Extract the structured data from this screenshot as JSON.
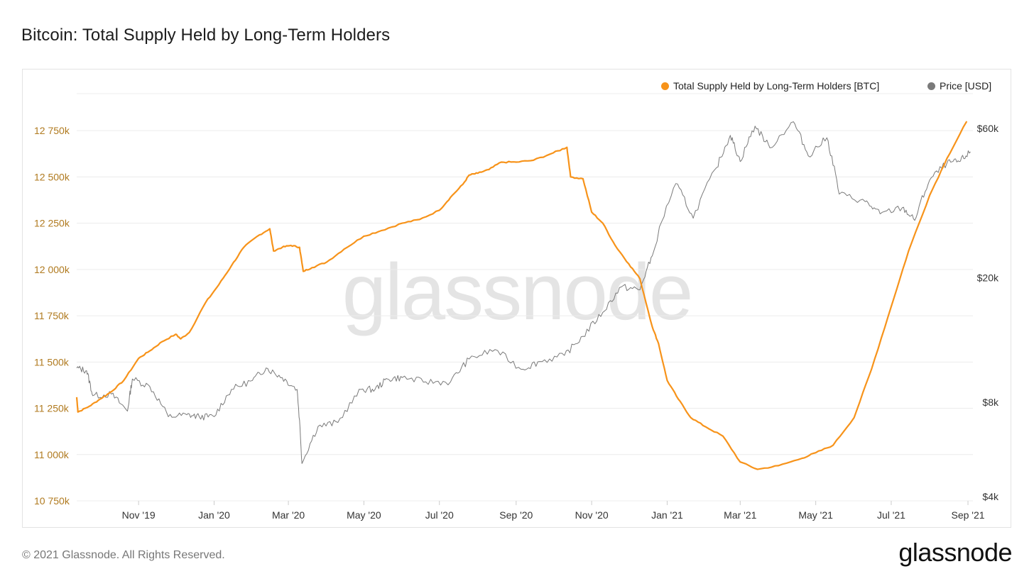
{
  "title": "Bitcoin: Total Supply Held by Long-Term Holders",
  "footer": {
    "copyright": "© 2021 Glassnode. All Rights Reserved.",
    "logo": "glassnode"
  },
  "colors": {
    "lth_line": "#f7931a",
    "price_line": "#7a7a7a",
    "left_axis_text": "#b07a1f",
    "grid": "#ececec"
  },
  "chart_data": {
    "type": "line",
    "title": "Bitcoin: Total Supply Held by Long-Term Holders",
    "watermark": "glassnode",
    "legend_position": "top-right",
    "grid": true,
    "x_range": [
      "2019-09-12",
      "2021-09-05"
    ],
    "x_ticks": [
      {
        "label": "Nov '19",
        "date": "2019-11-01"
      },
      {
        "label": "Jan '20",
        "date": "2020-01-01"
      },
      {
        "label": "Mar '20",
        "date": "2020-03-01"
      },
      {
        "label": "May '20",
        "date": "2020-05-01"
      },
      {
        "label": "Jul '20",
        "date": "2020-07-01"
      },
      {
        "label": "Sep '20",
        "date": "2020-09-01"
      },
      {
        "label": "Nov '20",
        "date": "2020-11-01"
      },
      {
        "label": "Jan '21",
        "date": "2021-01-01"
      },
      {
        "label": "Mar '21",
        "date": "2021-03-01"
      },
      {
        "label": "May '21",
        "date": "2021-05-01"
      },
      {
        "label": "Jul '21",
        "date": "2021-07-01"
      },
      {
        "label": "Sep '21",
        "date": "2021-09-01"
      }
    ],
    "y_left": {
      "unit": "BTC",
      "range": [
        10750000,
        12950000
      ],
      "ticks": [
        {
          "label": "10 750k",
          "value": 10750000
        },
        {
          "label": "11 000k",
          "value": 11000000
        },
        {
          "label": "11 250k",
          "value": 11250000
        },
        {
          "label": "11 500k",
          "value": 11500000
        },
        {
          "label": "11 750k",
          "value": 11750000
        },
        {
          "label": "12 000k",
          "value": 12000000
        },
        {
          "label": "12 250k",
          "value": 12250000
        },
        {
          "label": "12 500k",
          "value": 12500000
        },
        {
          "label": "12 750k",
          "value": 12750000
        }
      ]
    },
    "y_right": {
      "unit": "USD",
      "scale": "log",
      "range": [
        4000,
        60000
      ],
      "ticks": [
        {
          "label": "$4k",
          "value": 4000
        },
        {
          "label": "$8k",
          "value": 8000
        },
        {
          "label": "$20k",
          "value": 20000
        },
        {
          "label": "$60k",
          "value": 60000
        }
      ]
    },
    "series": [
      {
        "name": "Total Supply Held by Long-Term Holders [BTC]",
        "axis": "left",
        "color": "#f7931a",
        "points": [
          [
            "2019-09-12",
            11310000
          ],
          [
            "2019-09-13",
            11230000
          ],
          [
            "2019-09-22",
            11260000
          ],
          [
            "2019-10-01",
            11300000
          ],
          [
            "2019-10-10",
            11340000
          ],
          [
            "2019-10-20",
            11400000
          ],
          [
            "2019-11-01",
            11520000
          ],
          [
            "2019-11-10",
            11560000
          ],
          [
            "2019-11-20",
            11610000
          ],
          [
            "2019-12-01",
            11650000
          ],
          [
            "2019-12-05",
            11625000
          ],
          [
            "2019-12-12",
            11660000
          ],
          [
            "2019-12-25",
            11820000
          ],
          [
            "2020-01-05",
            11920000
          ],
          [
            "2020-01-15",
            12020000
          ],
          [
            "2020-01-25",
            12120000
          ],
          [
            "2020-02-05",
            12180000
          ],
          [
            "2020-02-15",
            12220000
          ],
          [
            "2020-02-18",
            12100000
          ],
          [
            "2020-02-25",
            12120000
          ],
          [
            "2020-03-03",
            12130000
          ],
          [
            "2020-03-10",
            12120000
          ],
          [
            "2020-03-13",
            11990000
          ],
          [
            "2020-03-20",
            12010000
          ],
          [
            "2020-04-01",
            12040000
          ],
          [
            "2020-04-15",
            12110000
          ],
          [
            "2020-05-01",
            12180000
          ],
          [
            "2020-05-15",
            12210000
          ],
          [
            "2020-06-01",
            12250000
          ],
          [
            "2020-06-15",
            12270000
          ],
          [
            "2020-07-01",
            12320000
          ],
          [
            "2020-07-10",
            12390000
          ],
          [
            "2020-07-20",
            12460000
          ],
          [
            "2020-07-25",
            12510000
          ],
          [
            "2020-08-01",
            12520000
          ],
          [
            "2020-08-10",
            12540000
          ],
          [
            "2020-08-20",
            12580000
          ],
          [
            "2020-09-01",
            12580000
          ],
          [
            "2020-09-15",
            12590000
          ],
          [
            "2020-10-01",
            12630000
          ],
          [
            "2020-10-12",
            12660000
          ],
          [
            "2020-10-15",
            12500000
          ],
          [
            "2020-10-25",
            12490000
          ],
          [
            "2020-11-01",
            12310000
          ],
          [
            "2020-11-10",
            12250000
          ],
          [
            "2020-11-20",
            12130000
          ],
          [
            "2020-12-01",
            12030000
          ],
          [
            "2020-12-10",
            11950000
          ],
          [
            "2020-12-20",
            11690000
          ],
          [
            "2020-12-25",
            11600000
          ],
          [
            "2021-01-01",
            11400000
          ],
          [
            "2021-01-10",
            11300000
          ],
          [
            "2021-01-20",
            11200000
          ],
          [
            "2021-02-01",
            11150000
          ],
          [
            "2021-02-15",
            11100000
          ],
          [
            "2021-03-01",
            10960000
          ],
          [
            "2021-03-15",
            10920000
          ],
          [
            "2021-04-01",
            10940000
          ],
          [
            "2021-04-20",
            10980000
          ],
          [
            "2021-05-01",
            11010000
          ],
          [
            "2021-05-15",
            11050000
          ],
          [
            "2021-06-01",
            11200000
          ],
          [
            "2021-06-15",
            11460000
          ],
          [
            "2021-07-01",
            11800000
          ],
          [
            "2021-07-15",
            12100000
          ],
          [
            "2021-08-01",
            12400000
          ],
          [
            "2021-08-15",
            12600000
          ],
          [
            "2021-08-31",
            12800000
          ]
        ]
      },
      {
        "name": "Price [USD]",
        "axis": "right",
        "color": "#7a7a7a",
        "points": [
          [
            "2019-09-12",
            10300
          ],
          [
            "2019-09-20",
            10100
          ],
          [
            "2019-09-25",
            8400
          ],
          [
            "2019-10-10",
            8500
          ],
          [
            "2019-10-23",
            7500
          ],
          [
            "2019-10-27",
            9500
          ],
          [
            "2019-11-10",
            9000
          ],
          [
            "2019-11-25",
            7200
          ],
          [
            "2019-12-10",
            7300
          ],
          [
            "2019-12-20",
            7200
          ],
          [
            "2020-01-01",
            7200
          ],
          [
            "2020-01-15",
            8800
          ],
          [
            "2020-02-01",
            9400
          ],
          [
            "2020-02-12",
            10300
          ],
          [
            "2020-02-25",
            9600
          ],
          [
            "2020-03-08",
            8800
          ],
          [
            "2020-03-12",
            5100
          ],
          [
            "2020-03-25",
            6700
          ],
          [
            "2020-04-10",
            6900
          ],
          [
            "2020-04-29",
            8800
          ],
          [
            "2020-05-10",
            8800
          ],
          [
            "2020-05-20",
            9500
          ],
          [
            "2020-06-01",
            9600
          ],
          [
            "2020-06-20",
            9300
          ],
          [
            "2020-07-10",
            9300
          ],
          [
            "2020-07-25",
            11000
          ],
          [
            "2020-08-15",
            11800
          ],
          [
            "2020-09-05",
            10200
          ],
          [
            "2020-09-20",
            10800
          ],
          [
            "2020-10-10",
            11300
          ],
          [
            "2020-10-25",
            13000
          ],
          [
            "2020-11-10",
            15500
          ],
          [
            "2020-11-25",
            18700
          ],
          [
            "2020-12-10",
            18300
          ],
          [
            "2020-12-20",
            23500
          ],
          [
            "2021-01-08",
            40000
          ],
          [
            "2021-01-22",
            31000
          ],
          [
            "2021-02-10",
            45000
          ],
          [
            "2021-02-21",
            57000
          ],
          [
            "2021-03-01",
            47000
          ],
          [
            "2021-03-13",
            61000
          ],
          [
            "2021-03-25",
            52000
          ],
          [
            "2021-04-13",
            63000
          ],
          [
            "2021-04-25",
            49000
          ],
          [
            "2021-05-10",
            56000
          ],
          [
            "2021-05-20",
            37000
          ],
          [
            "2021-06-10",
            35000
          ],
          [
            "2021-06-22",
            32000
          ],
          [
            "2021-07-10",
            33500
          ],
          [
            "2021-07-20",
            30500
          ],
          [
            "2021-08-01",
            41000
          ],
          [
            "2021-08-15",
            46500
          ],
          [
            "2021-08-25",
            47000
          ],
          [
            "2021-09-03",
            50500
          ]
        ]
      }
    ]
  }
}
